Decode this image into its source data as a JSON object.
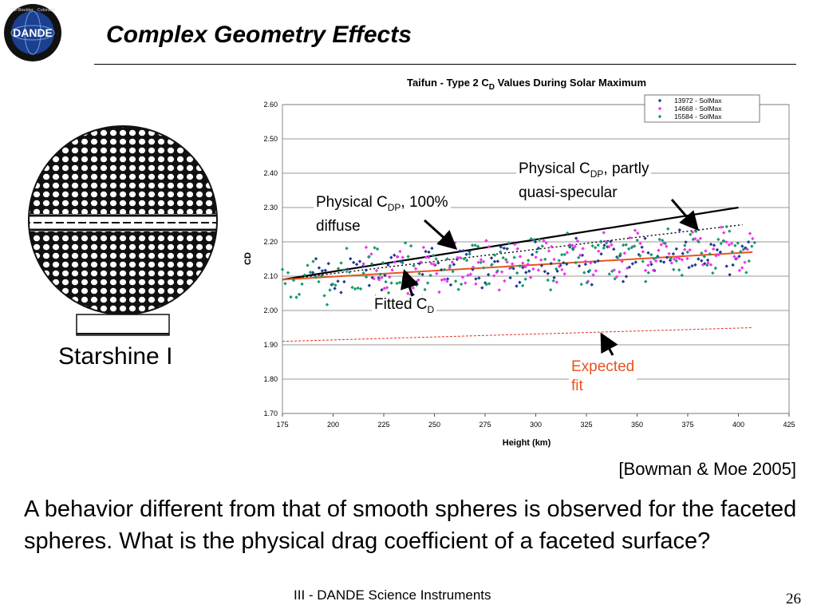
{
  "logo": {
    "text": "DANDE",
    "ring_text": "CU-Boulder · Colorado",
    "icon": "globe-logo-icon"
  },
  "title": "Complex Geometry Effects",
  "figure": {
    "caption": "Starshine I",
    "icon": "faceted-sphere-satellite"
  },
  "annotations": {
    "diffuse_main": "Physical C",
    "diffuse_sub": "DP",
    "diffuse_tail": ", 100%",
    "diffuse_line2": "diffuse",
    "specular_main": "Physical C",
    "specular_sub": "DP",
    "specular_tail": ", partly",
    "specular_line2": "quasi-specular",
    "fitted_main": "Fitted C",
    "fitted_sub": "D",
    "expected_line1": "Expected",
    "expected_line2": "fit"
  },
  "citation": "[Bowman & Moe  2005]",
  "body_text": "A behavior different from that of smooth spheres is observed for the faceted spheres.  What is the physical drag coefficient of a faceted surface?",
  "footer": "III - DANDE Science Instruments",
  "page_number": "26",
  "colors": {
    "fitted": "#e8541f",
    "expected": "#e0301e",
    "s1": "#1f3a8f",
    "s2": "#ee33ee",
    "s3": "#159a6a"
  },
  "chart_data": {
    "type": "scatter",
    "title_main": "Taifun - Type 2 C",
    "title_sub": "D",
    "title_tail": " Values During Solar Maximum",
    "xlabel": "Height (km)",
    "ylabel": "CD",
    "xlim": [
      175,
      425
    ],
    "ylim": [
      1.7,
      2.6
    ],
    "x_ticks": [
      "175",
      "200",
      "225",
      "250",
      "275",
      "300",
      "325",
      "350",
      "375",
      "400",
      "425"
    ],
    "y_ticks": [
      "1.70",
      "1.80",
      "1.90",
      "2.00",
      "2.10",
      "2.20",
      "2.30",
      "2.40",
      "2.50",
      "2.60"
    ],
    "grid": true,
    "legend_position": "top-right",
    "series": [
      {
        "name": "13972 - SolMax",
        "marker": "diamond",
        "x_range": [
          190,
          405
        ],
        "base_at_start": 2.1,
        "base_at_end": 2.17,
        "spread": 0.07,
        "n": 140,
        "seed": 11
      },
      {
        "name": "14668 - SolMax",
        "marker": "diamond",
        "x_range": [
          215,
          407
        ],
        "base_at_start": 2.11,
        "base_at_end": 2.18,
        "spread": 0.07,
        "n": 150,
        "seed": 29
      },
      {
        "name": "15584 - SolMax",
        "marker": "diamond",
        "x_range": [
          175,
          408
        ],
        "base_at_start": 2.09,
        "base_at_end": 2.19,
        "spread": 0.08,
        "n": 170,
        "seed": 53
      }
    ],
    "lines": [
      {
        "label": "Physical CDP, 100% diffuse",
        "style": "solid",
        "x": [
          175,
          400
        ],
        "y": [
          2.09,
          2.3
        ]
      },
      {
        "label": "Physical CDP, partly quasi-specular",
        "style": "dotted",
        "x": [
          175,
          402
        ],
        "y": [
          2.09,
          2.25
        ]
      },
      {
        "label": "Fitted CD",
        "style": "solid",
        "x": [
          175,
          407
        ],
        "y": [
          2.09,
          2.17
        ]
      },
      {
        "label": "Expected fit",
        "style": "dashed",
        "x": [
          175,
          407
        ],
        "y": [
          1.91,
          1.95
        ]
      }
    ]
  }
}
